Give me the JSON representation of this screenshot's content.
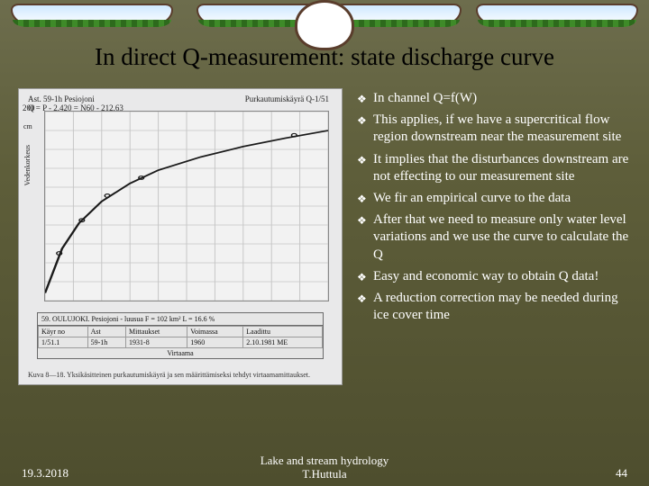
{
  "slide": {
    "title": "In direct Q-measurement: state discharge curve",
    "background_gradient": [
      "#6d6d4d",
      "#4e4e2e"
    ]
  },
  "bullets": [
    "In channel  Q=f(W)",
    "This applies, if we have a supercritical flow region downstream near the measurement site",
    "It implies that the disturbances downstream are not effecting to our measurement site",
    "We fir an empirical curve to the data",
    "After that we need to measure only water level variations and we use the curve to calculate the Q",
    "Easy and economic way to obtain Q data!",
    "A reduction correction may be needed during ice cover time"
  ],
  "chart": {
    "type": "line",
    "top_left_label": "Ast. 59-1h  Pesiojoni",
    "formula": "Q = P - 2.420 = N60 - 212.63",
    "top_right_label": "Purkautumiskäyrä  Q-1/51",
    "yscale_top": "200",
    "yscale_unit": "cm",
    "y_axis_label": "Vedenkorkeus",
    "x_axis_label": "Virtaama",
    "xlim": [
      0,
      10
    ],
    "ylim": [
      0,
      200
    ],
    "curve_points": [
      {
        "x": 0.0,
        "y": 8
      },
      {
        "x": 0.6,
        "y": 55
      },
      {
        "x": 1.2,
        "y": 82
      },
      {
        "x": 2.0,
        "y": 105
      },
      {
        "x": 3.0,
        "y": 124
      },
      {
        "x": 4.0,
        "y": 138
      },
      {
        "x": 5.5,
        "y": 152
      },
      {
        "x": 7.0,
        "y": 163
      },
      {
        "x": 8.5,
        "y": 172
      },
      {
        "x": 10.0,
        "y": 180
      }
    ],
    "markers": [
      {
        "x": 0.5,
        "y": 50
      },
      {
        "x": 1.3,
        "y": 85
      },
      {
        "x": 2.2,
        "y": 111
      },
      {
        "x": 3.4,
        "y": 130
      },
      {
        "x": 8.8,
        "y": 175
      }
    ],
    "curve_color": "#1a1a1a",
    "marker_color": "#1a1a1a",
    "grid_color": "#c4c4c4",
    "plot_bg": "#f2f2f2",
    "panel_bg": "#e9e9ea",
    "caption": "Kuva 8—18. Yksikäsitteinen purkautumiskäyrä ja sen määrittämiseksi tehdyt virtaamamittaukset.",
    "table": {
      "header": "59. OULUJOKI. Pesiojoni - luusua   F = 102 km²   L = 16.6 %",
      "columns": [
        "Käyr no",
        "Ast",
        "Mittaukset",
        "Voimassa",
        "Laadittu"
      ],
      "rows": [
        [
          "1/51.1",
          "59-1h",
          "1931-8",
          "1960",
          "2.10.1981 ME"
        ]
      ]
    }
  },
  "footer": {
    "date": "19.3.2018",
    "center_line1": "Lake and stream hydrology",
    "center_line2": "T.Huttula",
    "page": "44"
  }
}
